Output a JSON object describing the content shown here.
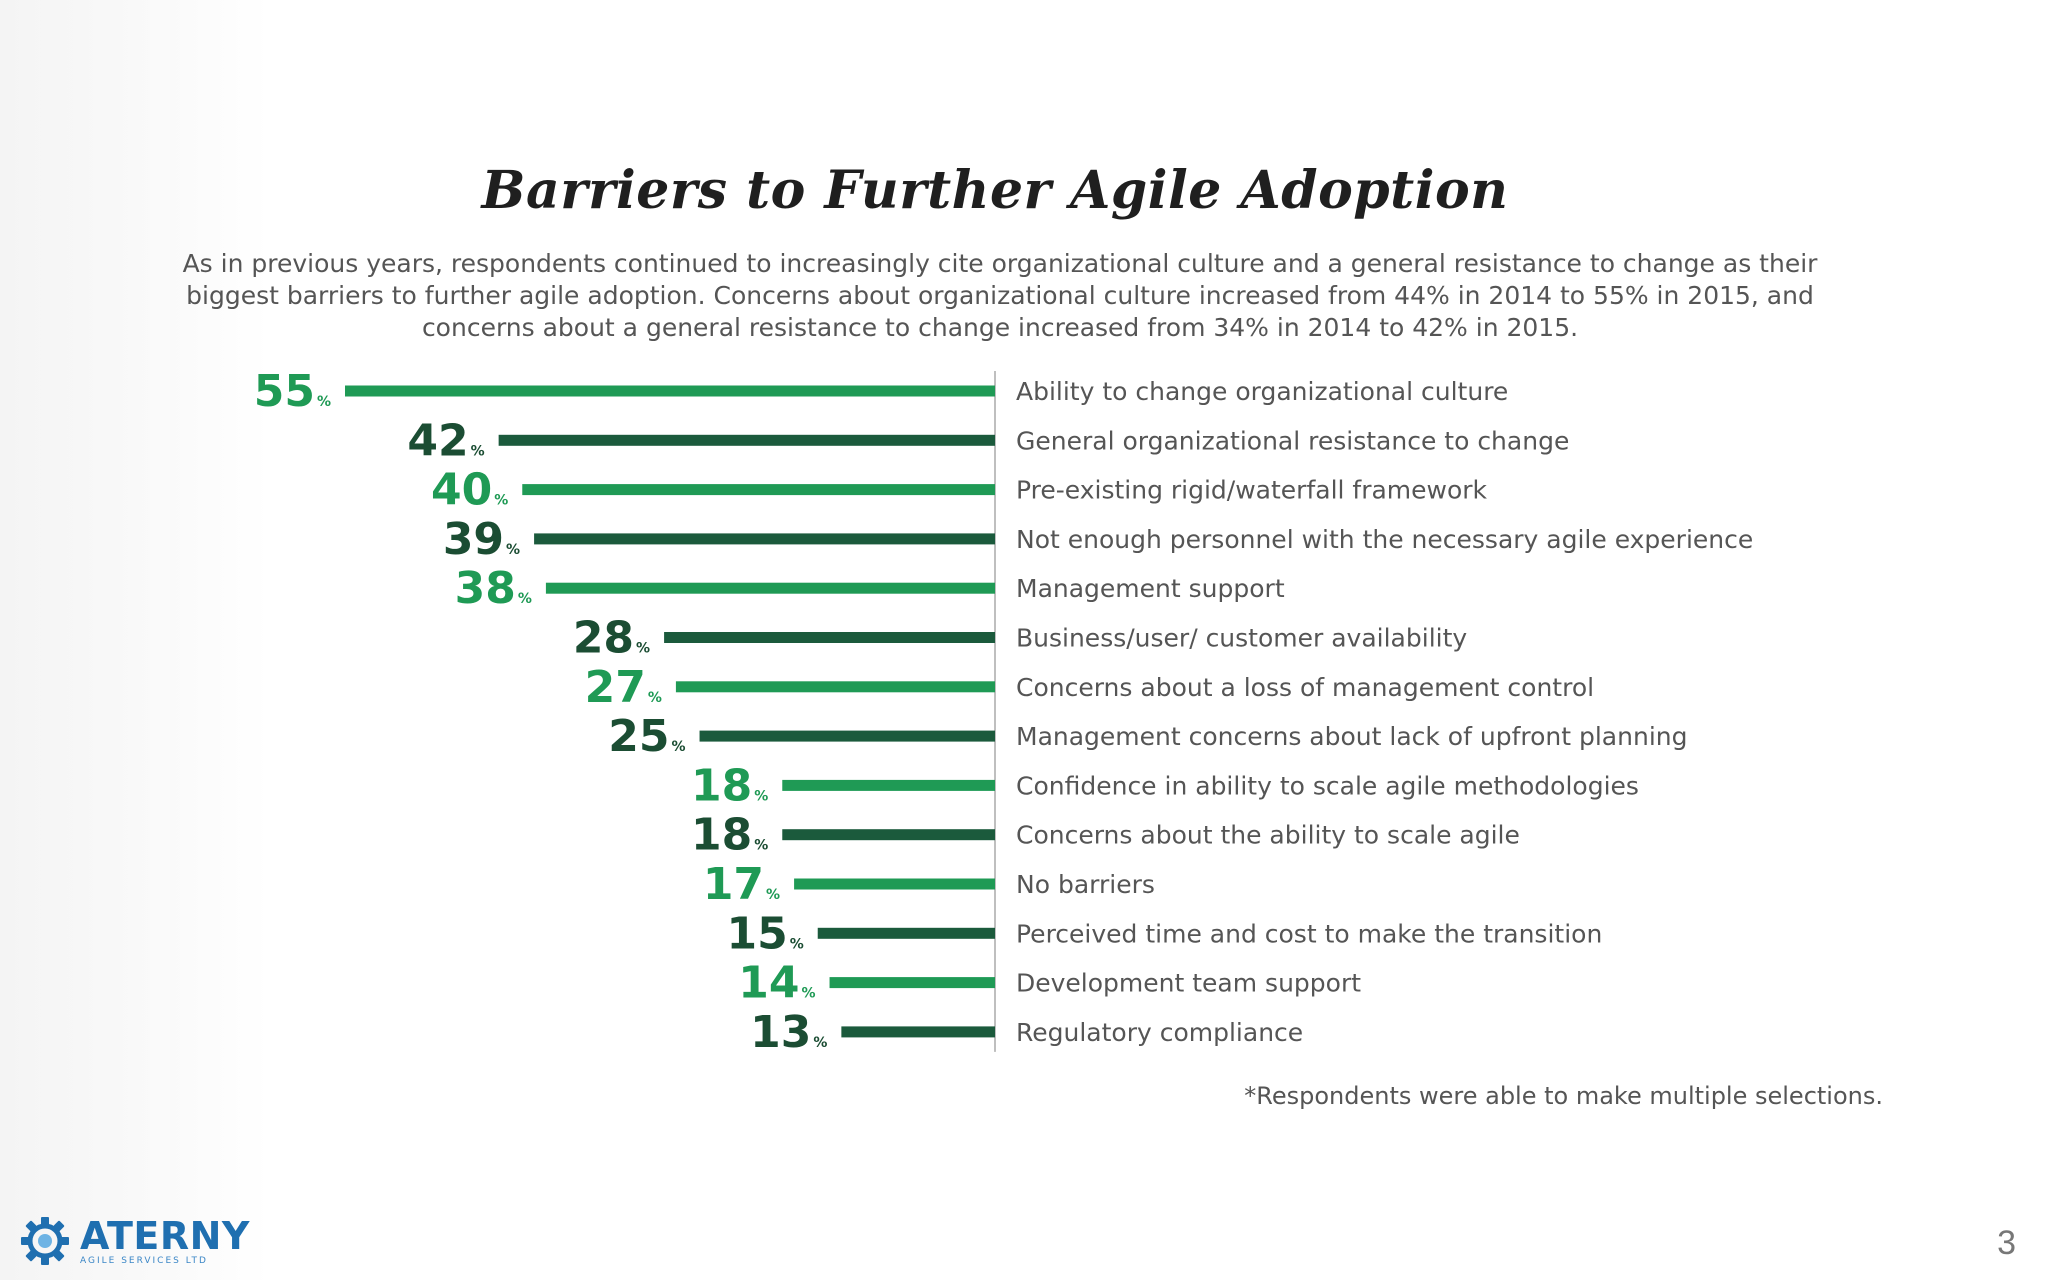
{
  "slide": {
    "title": "Barriers to Further Agile Adoption",
    "subtitle": "As in previous years, respondents continued to increasingly cite organizational culture and a general resistance to change as their biggest barriers to further agile adoption. Concerns about organizational culture increased from 44% in 2014 to 55% in 2015, and concerns about a general resistance to change increased from 34% in 2014 to 42% in 2015.",
    "footnote": "*Respondents were able to make multiple selections.",
    "page_number": "3",
    "logo": {
      "name": "ATERNY",
      "tagline": "AGILE SERVICES LTD",
      "icon": "gear-logo-icon"
    }
  },
  "colors": {
    "bar_light": "#1f9a55",
    "bar_dark": "#1b5a3c",
    "label_light": "#1f9a55",
    "label_dark": "#1b4d33",
    "axis": "#aaaaaa"
  },
  "chart_data": {
    "type": "bar",
    "orientation": "horizontal",
    "unit": "%",
    "categories": [
      "Ability to change organizational culture",
      "General organizational resistance to change",
      "Pre-existing rigid/waterfall framework",
      "Not enough personnel with the necessary agile experience",
      "Management support",
      "Business/user/ customer availability",
      "Concerns about a loss of management control",
      "Management concerns about lack of upfront planning",
      "Confidence in ability to scale agile methodologies",
      "Concerns about the ability to scale agile",
      "No barriers",
      "Perceived time and cost to make the transition",
      "Development team support",
      "Regulatory compliance"
    ],
    "values": [
      55,
      42,
      40,
      39,
      38,
      28,
      27,
      25,
      18,
      18,
      17,
      15,
      14,
      13
    ],
    "value_labels": [
      "55",
      "42",
      "40",
      "39",
      "38",
      "28",
      "27",
      "25",
      "18",
      "18",
      "17",
      "15",
      "14",
      "13"
    ],
    "bar_color_pattern": [
      "light",
      "dark",
      "light",
      "dark",
      "light",
      "dark",
      "light",
      "dark",
      "light",
      "dark",
      "light",
      "dark",
      "light",
      "dark"
    ],
    "xlim": [
      0,
      55
    ],
    "grid": false,
    "legend": "none"
  }
}
